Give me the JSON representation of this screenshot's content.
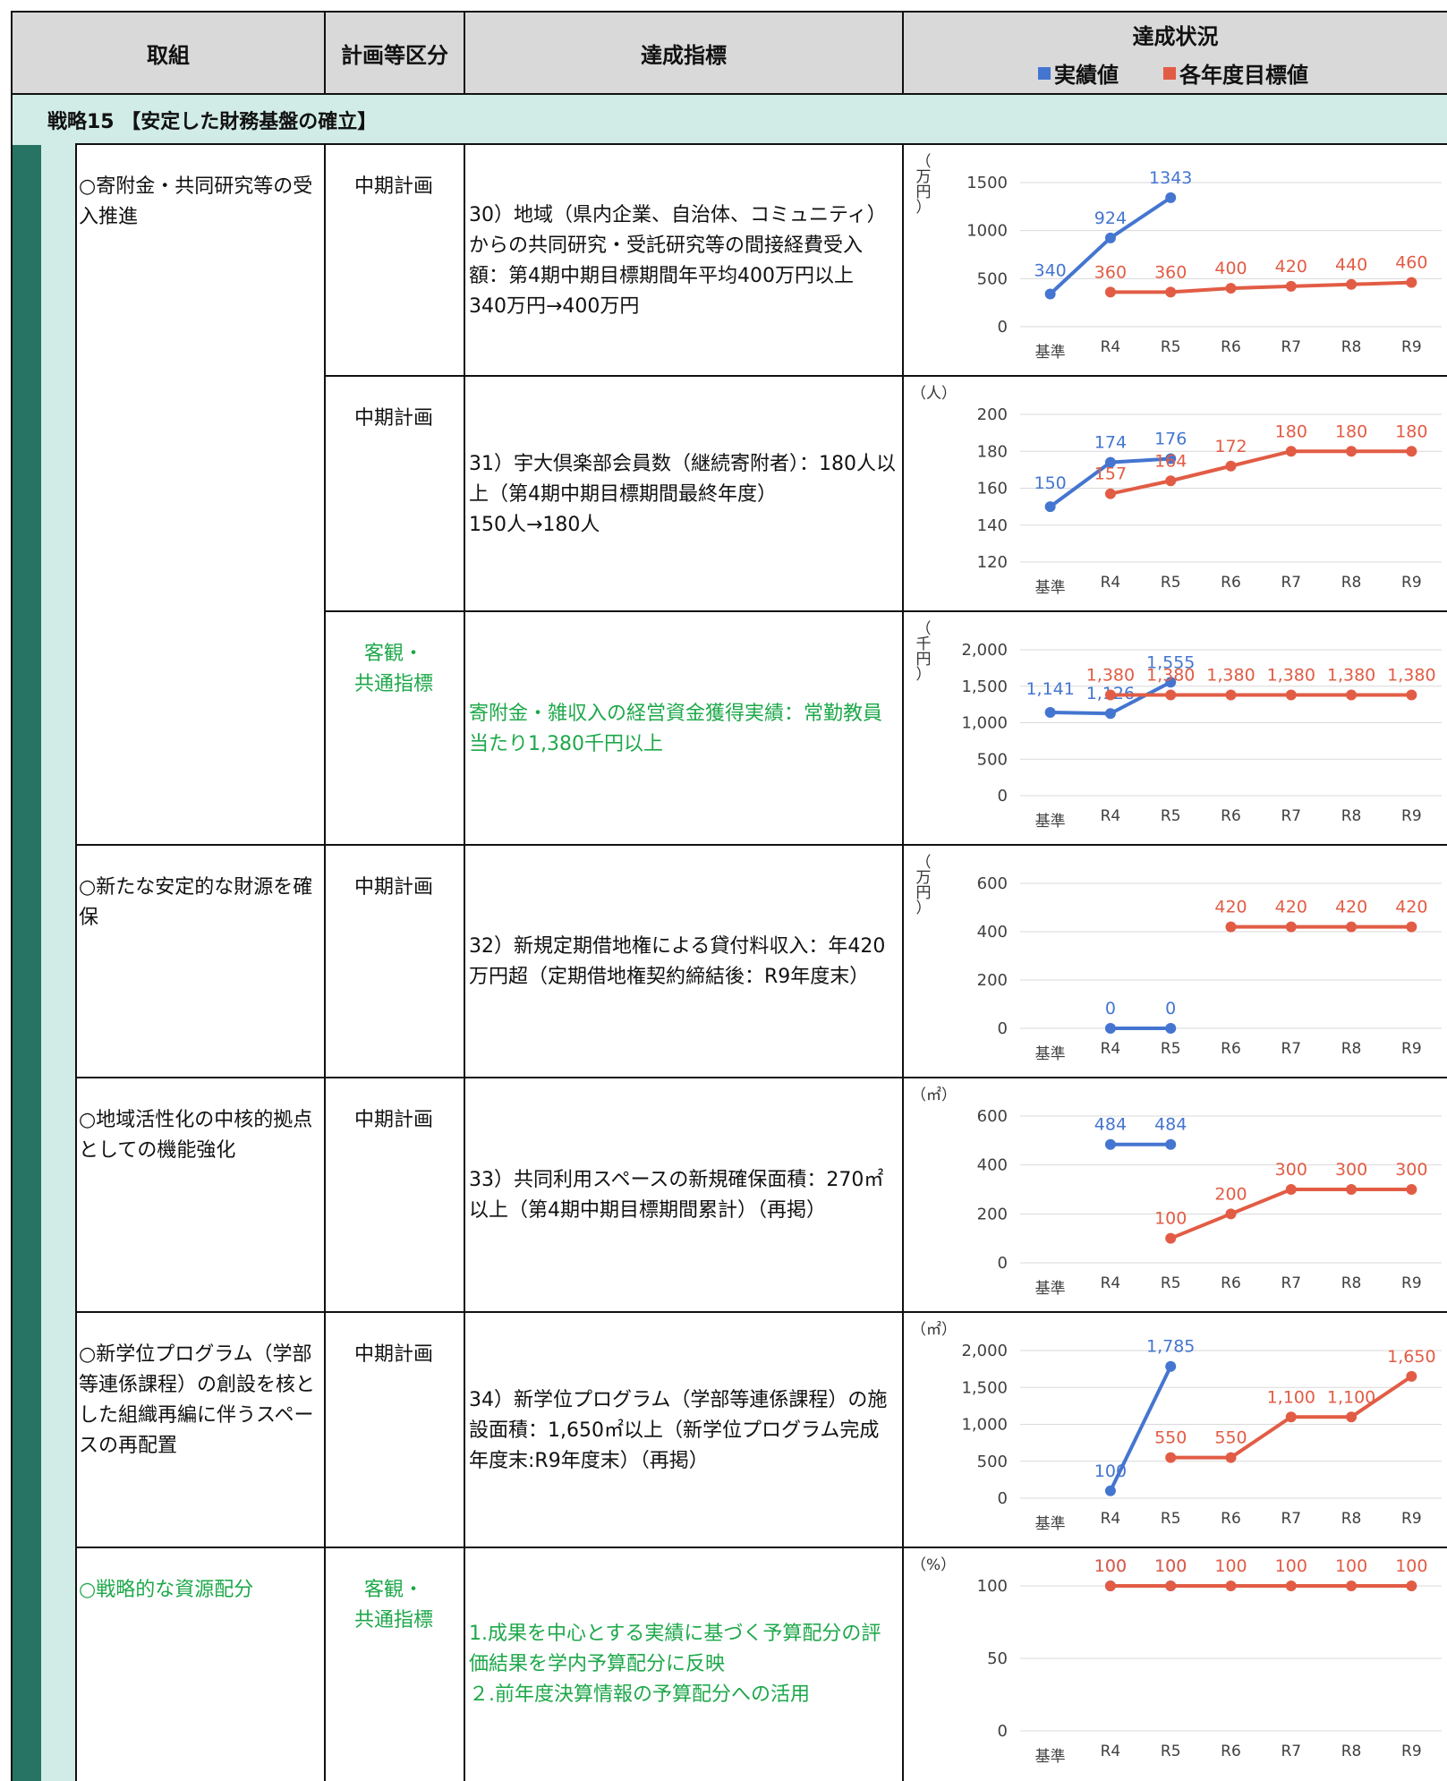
{
  "header": {
    "col1": "取組",
    "col2": "計画等区分",
    "col3": "達成指標",
    "col4": "達成状況",
    "legend_actual": "実績値",
    "legend_target": "各年度目標値",
    "actual_color": "#4475d0",
    "target_color": "#e25c45"
  },
  "strategy": "戦略15 【安定した財務基盤の確立】",
  "rows": [
    {
      "initiative": "○寄附金・共同研究等の受入推進",
      "plan": "中期計画",
      "indicator": "30）地域（県内企業、自治体、コミュニティ）からの共同研究・受託研究等の間接経費受入額：第4期中期目標期間年平均400万円以上\n340万円→400万円"
    },
    {
      "initiative": "",
      "plan": "中期計画",
      "indicator": "31）宇大倶楽部会員数（継続寄附者）：180人以上（第4期中期目標期間最終年度）\n150人→180人"
    },
    {
      "initiative": "",
      "plan": "客観・\n共通指標",
      "indicator": "寄附金・雑収入の経営資金獲得実績：常勤教員当たり1,380千円以上"
    },
    {
      "initiative": "○新たな安定的な財源を確保",
      "plan": "中期計画",
      "indicator": "32）新規定期借地権による貸付料収入：年420万円超（定期借地権契約締結後：R9年度末）"
    },
    {
      "initiative": "○地域活性化の中核的拠点としての機能強化",
      "plan": "中期計画",
      "indicator": "33）共同利用スペースの新規確保面積：270㎡以上（第4期中期目標期間累計）（再掲）"
    },
    {
      "initiative": "○新学位プログラム（学部等連係課程）の創設を核とした組織再編に伴うスペースの再配置",
      "plan": "中期計画",
      "indicator": "34）新学位プログラム（学部等連係課程）の施設面積：1,650㎡以上（新学位プログラム完成年度末:R9年度末）（再掲）"
    },
    {
      "initiative": "○戦略的な資源配分",
      "plan": "客観・\n共通指標",
      "indicator": "1.成果を中心とする実績に基づく予算配分の評価結果を学内予算配分に反映\n２.前年度決算情報の予算配分への活用"
    }
  ],
  "chart_data": [
    {
      "type": "line",
      "unit": "（万円）",
      "categories": [
        "基準",
        "R4",
        "R5",
        "R6",
        "R7",
        "R8",
        "R9"
      ],
      "ylim": [
        0,
        1500
      ],
      "yticks": [
        "0",
        "500",
        "1000",
        "1500"
      ],
      "series": [
        {
          "name": "実績値",
          "values": [
            340,
            924,
            1343,
            null,
            null,
            null,
            null
          ],
          "labels": [
            "340",
            "924",
            "1343",
            "",
            "",
            "",
            ""
          ]
        },
        {
          "name": "各年度目標値",
          "values": [
            null,
            360,
            360,
            400,
            420,
            440,
            460
          ],
          "labels": [
            "",
            "360",
            "360",
            "400",
            "420",
            "440",
            "460"
          ]
        }
      ]
    },
    {
      "type": "line",
      "unit": "（人）",
      "categories": [
        "基準",
        "R4",
        "R5",
        "R6",
        "R7",
        "R8",
        "R9"
      ],
      "ylim": [
        120,
        200
      ],
      "yticks": [
        "120",
        "140",
        "160",
        "180",
        "200"
      ],
      "series": [
        {
          "name": "実績値",
          "values": [
            150,
            174,
            176,
            null,
            null,
            null,
            null
          ],
          "labels": [
            "150",
            "174",
            "176",
            "",
            "",
            "",
            ""
          ]
        },
        {
          "name": "各年度目標値",
          "values": [
            null,
            157,
            164,
            172,
            180,
            180,
            180
          ],
          "labels": [
            "",
            "157",
            "164",
            "172",
            "180",
            "180",
            "180"
          ]
        }
      ]
    },
    {
      "type": "line",
      "unit": "（千円）",
      "categories": [
        "基準",
        "R4",
        "R5",
        "R6",
        "R7",
        "R8",
        "R9"
      ],
      "ylim": [
        0,
        2000
      ],
      "yticks": [
        "0",
        "500",
        "1,000",
        "1,500",
        "2,000"
      ],
      "series": [
        {
          "name": "実績値",
          "values": [
            1141,
            1126,
            1555,
            null,
            null,
            null,
            null
          ],
          "labels": [
            "1,141",
            "1,126",
            "1,555",
            "",
            "",
            "",
            ""
          ]
        },
        {
          "name": "各年度目標値",
          "values": [
            null,
            1380,
            1380,
            1380,
            1380,
            1380,
            1380
          ],
          "labels": [
            "",
            "1,380",
            "1,380",
            "1,380",
            "1,380",
            "1,380",
            "1,380"
          ]
        }
      ]
    },
    {
      "type": "line",
      "unit": "（万円）",
      "categories": [
        "基準",
        "R4",
        "R5",
        "R6",
        "R7",
        "R8",
        "R9"
      ],
      "ylim": [
        0,
        600
      ],
      "yticks": [
        "0",
        "200",
        "400",
        "600"
      ],
      "series": [
        {
          "name": "実績値",
          "values": [
            null,
            0,
            0,
            null,
            null,
            null,
            null
          ],
          "labels": [
            "",
            "0",
            "0",
            "",
            "",
            "",
            ""
          ]
        },
        {
          "name": "各年度目標値",
          "values": [
            null,
            null,
            null,
            420,
            420,
            420,
            420
          ],
          "labels": [
            "",
            "",
            "",
            "420",
            "420",
            "420",
            "420"
          ]
        }
      ]
    },
    {
      "type": "line",
      "unit": "（㎡）",
      "categories": [
        "基準",
        "R4",
        "R5",
        "R6",
        "R7",
        "R8",
        "R9"
      ],
      "ylim": [
        0,
        600
      ],
      "yticks": [
        "0",
        "200",
        "400",
        "600"
      ],
      "series": [
        {
          "name": "実績値",
          "values": [
            null,
            484,
            484,
            null,
            null,
            null,
            null
          ],
          "labels": [
            "",
            "484",
            "484",
            "",
            "",
            "",
            ""
          ]
        },
        {
          "name": "各年度目標値",
          "values": [
            null,
            null,
            100,
            200,
            300,
            300,
            300
          ],
          "labels": [
            "",
            "",
            "100",
            "200",
            "300",
            "300",
            "300"
          ]
        }
      ]
    },
    {
      "type": "line",
      "unit": "（㎡）",
      "categories": [
        "基準",
        "R4",
        "R5",
        "R6",
        "R7",
        "R8",
        "R9"
      ],
      "ylim": [
        0,
        2000
      ],
      "yticks": [
        "0",
        "500",
        "1,000",
        "1,500",
        "2,000"
      ],
      "series": [
        {
          "name": "実績値",
          "values": [
            null,
            100,
            1785,
            null,
            null,
            null,
            null
          ],
          "labels": [
            "",
            "100",
            "1,785",
            "",
            "",
            "",
            ""
          ]
        },
        {
          "name": "各年度目標値",
          "values": [
            null,
            null,
            550,
            550,
            1100,
            1100,
            1650
          ],
          "labels": [
            "",
            "",
            "550",
            "550",
            "1,100",
            "1,100",
            "1,650"
          ]
        }
      ]
    },
    {
      "type": "line",
      "unit": "（%）",
      "categories": [
        "基準",
        "R4",
        "R5",
        "R6",
        "R7",
        "R8",
        "R9"
      ],
      "ylim": [
        0,
        100
      ],
      "yticks": [
        "0",
        "50",
        "100"
      ],
      "series": [
        {
          "name": "実績値",
          "values": [
            null,
            100,
            100,
            null,
            null,
            null,
            null
          ],
          "labels": [
            "",
            "100",
            "100",
            "",
            "",
            "",
            ""
          ]
        },
        {
          "name": "各年度目標値",
          "values": [
            null,
            100,
            100,
            100,
            100,
            100,
            100
          ],
          "labels": [
            "",
            "100",
            "100",
            "100",
            "100",
            "100",
            "100"
          ]
        }
      ]
    }
  ]
}
